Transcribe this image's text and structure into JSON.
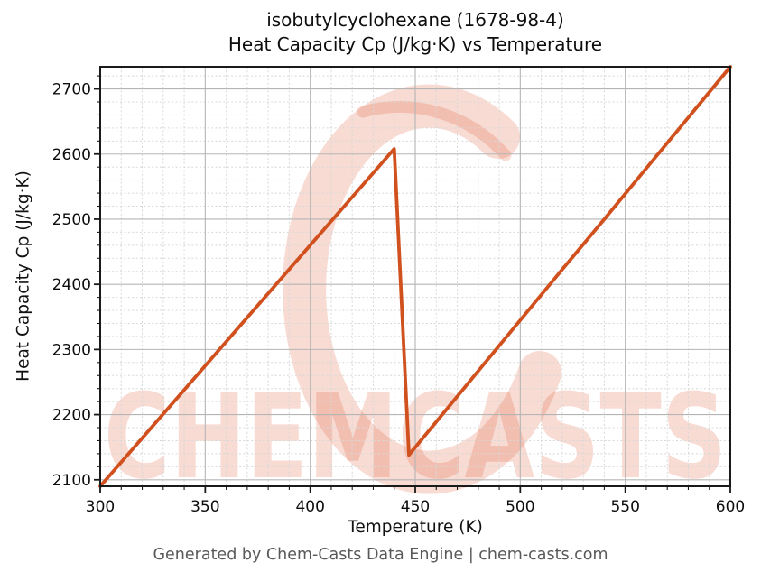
{
  "figure": {
    "title_line1": "isobutylcyclohexane (1678-98-4)",
    "title_line2": "Heat Capacity Cp (J/kg·K) vs Temperature",
    "footer": "Generated by Chem-Casts Data Engine | chem-casts.com",
    "watermark_text": "CHEMCASTS"
  },
  "chart_data": {
    "type": "line",
    "title": "isobutylcyclohexane (1678-98-4)\nHeat Capacity Cp (J/kg·K) vs Temperature",
    "xlabel": "Temperature (K)",
    "ylabel": "Heat Capacity Cp (J/kg·K)",
    "xlim": [
      300,
      600
    ],
    "ylim": [
      2090,
      2734
    ],
    "xticks": [
      300,
      350,
      400,
      450,
      500,
      550,
      600
    ],
    "yticks": [
      2100,
      2200,
      2300,
      2400,
      2500,
      2600,
      2700
    ],
    "x_minor_step": 10,
    "y_minor_step": 20,
    "grid": true,
    "legend": false,
    "series": [
      {
        "name": "Heat Capacity Cp",
        "x": [
          300,
          320,
          340,
          360,
          380,
          400,
          420,
          440,
          447,
          460,
          480,
          500,
          520,
          540,
          560,
          580,
          600
        ],
        "y": [
          2090,
          2164,
          2238,
          2312,
          2386,
          2460,
          2534,
          2608,
          2138,
          2189,
          2267,
          2345,
          2423,
          2500,
          2578,
          2656,
          2734
        ]
      }
    ],
    "features": {
      "peak": {
        "x": 440,
        "y": 2608
      },
      "trough_after_drop": {
        "x": 447,
        "y": 2138
      }
    }
  },
  "colors": {
    "line": "#d0501e",
    "watermark": "rgba(224,83,47,0.21)",
    "grid_major": "#b5b5b5",
    "grid_minor": "#d8d8d8",
    "spine": "#1a1a1a",
    "tick_label": "#0d0d0d",
    "footer_text": "#595959",
    "background": "#ffffff"
  }
}
